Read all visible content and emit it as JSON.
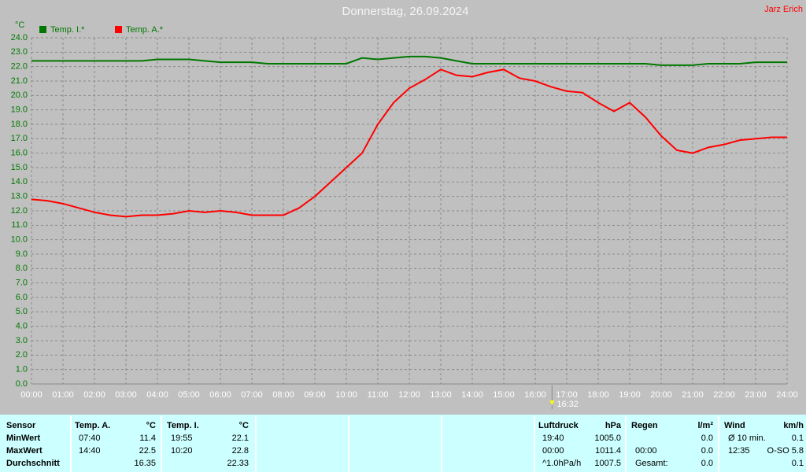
{
  "chart_data": {
    "type": "line",
    "title": "Donnerstag, 26.09.2024",
    "author": "Jarz Erich",
    "y_label": "°C",
    "marker_label": "16:32",
    "x": [
      0,
      0.5,
      1,
      1.5,
      2,
      2.5,
      3,
      3.5,
      4,
      4.5,
      5,
      5.5,
      6,
      6.5,
      7,
      7.5,
      8,
      8.5,
      9,
      9.5,
      10,
      10.5,
      11,
      11.5,
      12,
      12.5,
      13,
      13.5,
      14,
      14.5,
      15,
      15.5,
      16,
      16.5,
      17,
      17.5,
      18,
      18.5,
      19,
      19.5,
      20,
      20.5,
      21,
      21.5,
      22,
      22.5,
      23,
      23.5,
      24
    ],
    "series": [
      {
        "name": "Temp. I.*",
        "color": "#007800",
        "values": [
          22.4,
          22.4,
          22.4,
          22.4,
          22.4,
          22.4,
          22.4,
          22.4,
          22.5,
          22.5,
          22.5,
          22.4,
          22.3,
          22.3,
          22.3,
          22.2,
          22.2,
          22.2,
          22.2,
          22.2,
          22.2,
          22.6,
          22.5,
          22.6,
          22.7,
          22.7,
          22.6,
          22.4,
          22.2,
          22.2,
          22.2,
          22.2,
          22.2,
          22.2,
          22.2,
          22.2,
          22.2,
          22.2,
          22.2,
          22.2,
          22.1,
          22.1,
          22.1,
          22.2,
          22.2,
          22.2,
          22.3,
          22.3,
          22.3
        ]
      },
      {
        "name": "Temp. A.*",
        "color": "#ff0000",
        "values": [
          12.8,
          12.7,
          12.5,
          12.2,
          11.9,
          11.7,
          11.6,
          11.7,
          11.7,
          11.8,
          12.0,
          11.9,
          12.0,
          11.9,
          11.7,
          11.7,
          11.7,
          12.2,
          13.0,
          14.0,
          15.0,
          16.0,
          18.0,
          19.5,
          20.5,
          21.1,
          21.8,
          21.4,
          21.3,
          21.6,
          21.8,
          21.2,
          21.0,
          20.6,
          20.3,
          20.2,
          19.5,
          18.9,
          19.5,
          18.5,
          17.2,
          16.2,
          16.0,
          16.4,
          16.6,
          16.9,
          17.0,
          17.1,
          17.1
        ]
      }
    ],
    "xlim": [
      0,
      24
    ],
    "xticks": [
      {
        "value": 0,
        "label": "00:00"
      },
      {
        "value": 1,
        "label": "01:00"
      },
      {
        "value": 2,
        "label": "02:00"
      },
      {
        "value": 3,
        "label": "03:00"
      },
      {
        "value": 4,
        "label": "04:00"
      },
      {
        "value": 5,
        "label": "05:00"
      },
      {
        "value": 6,
        "label": "06:00"
      },
      {
        "value": 7,
        "label": "07:00"
      },
      {
        "value": 8,
        "label": "08:00"
      },
      {
        "value": 9,
        "label": "09:00"
      },
      {
        "value": 10,
        "label": "10:00"
      },
      {
        "value": 11,
        "label": "11:00"
      },
      {
        "value": 12,
        "label": "12:00"
      },
      {
        "value": 13,
        "label": "13:00"
      },
      {
        "value": 14,
        "label": "14:00"
      },
      {
        "value": 15,
        "label": "15:00"
      },
      {
        "value": 16,
        "label": "16:00"
      },
      {
        "value": 17,
        "label": "17:00"
      },
      {
        "value": 18,
        "label": "18:00"
      },
      {
        "value": 19,
        "label": "19:00"
      },
      {
        "value": 20,
        "label": "20:00"
      },
      {
        "value": 21,
        "label": "21:00"
      },
      {
        "value": 22,
        "label": "22:00"
      },
      {
        "value": 23,
        "label": "23:00"
      },
      {
        "value": 24,
        "label": "24:00"
      }
    ],
    "ylim": [
      0,
      24
    ],
    "yticks": [
      {
        "value": 0,
        "label": "0.0"
      },
      {
        "value": 1,
        "label": "1.0"
      },
      {
        "value": 2,
        "label": "2.0"
      },
      {
        "value": 3,
        "label": "3.0"
      },
      {
        "value": 4,
        "label": "4.0"
      },
      {
        "value": 5,
        "label": "5.0"
      },
      {
        "value": 6,
        "label": "6.0"
      },
      {
        "value": 7,
        "label": "7.0"
      },
      {
        "value": 8,
        "label": "8.0"
      },
      {
        "value": 9,
        "label": "9.0"
      },
      {
        "value": 10,
        "label": "10.0"
      },
      {
        "value": 11,
        "label": "11.0"
      },
      {
        "value": 12,
        "label": "12.0"
      },
      {
        "value": 13,
        "label": "13.0"
      },
      {
        "value": 14,
        "label": "14.0"
      },
      {
        "value": 15,
        "label": "15.0"
      },
      {
        "value": 16,
        "label": "16.0"
      },
      {
        "value": 17,
        "label": "17.0"
      },
      {
        "value": 18,
        "label": "18.0"
      },
      {
        "value": 19,
        "label": "19.0"
      },
      {
        "value": 20,
        "label": "20.0"
      },
      {
        "value": 21,
        "label": "21.0"
      },
      {
        "value": 22,
        "label": "22.0"
      },
      {
        "value": 23,
        "label": "23.0"
      },
      {
        "value": 24,
        "label": "24.0"
      }
    ],
    "grid": true,
    "legend": "top-left"
  },
  "table": {
    "labels": [
      "Sensor",
      "MinWert",
      "MaxWert",
      "Durchschnitt"
    ],
    "sections": [
      {
        "name": "Temp. A.",
        "unit": "°C",
        "rows": [
          {
            "time": "07:40",
            "value": "11.4"
          },
          {
            "time": "14:40",
            "value": "22.5"
          },
          {
            "value": "16.35"
          }
        ]
      },
      {
        "name": "Temp. I.",
        "unit": "°C",
        "rows": [
          {
            "time": "19:55",
            "value": "22.1"
          },
          {
            "time": "10:20",
            "value": "22.8"
          },
          {
            "value": "22.33"
          }
        ]
      },
      {
        "name": "Luftdruck",
        "unit": "hPa",
        "rows": [
          {
            "time": "19:40",
            "value": "1005.0"
          },
          {
            "time": "00:00",
            "value": "1011.4"
          },
          {
            "time": "^1.0hPa/h",
            "value": "1007.5"
          }
        ]
      },
      {
        "name": "Regen",
        "unit": "l/m²",
        "rows": [
          {
            "value": "0.0"
          },
          {
            "time": "00:00",
            "value": "0.0"
          },
          {
            "time": "Gesamt:",
            "value": "0.0"
          }
        ]
      },
      {
        "name": "Wind",
        "unit": "km/h",
        "rows": [
          {
            "time": "Ø 10 min.",
            "value": "0.1"
          },
          {
            "time": "12:35",
            "value": "O-SO 5.8"
          },
          {
            "value": "0.1"
          }
        ]
      }
    ]
  }
}
